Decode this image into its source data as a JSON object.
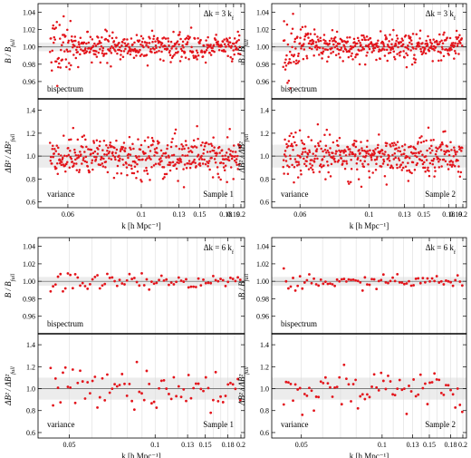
{
  "chart_data": [
    {
      "type": "scatter",
      "top": {
        "ylabel": "B / B_full",
        "ylim": [
          0.94,
          1.05
        ],
        "yticks": [
          "0.96",
          "0.98",
          "1.00",
          "1.02",
          "1.04"
        ],
        "annotation": "bispectrum",
        "label": "Δk = 3 k_f"
      },
      "bottom": {
        "ylabel": "ΔB² / ΔB²_full",
        "ylim": [
          0.55,
          1.5
        ],
        "yticks": [
          "0.6",
          "0.8",
          "1.0",
          "1.2",
          "1.4"
        ],
        "annotation": "variance",
        "label": "Sample 1"
      },
      "xlabel": "k [h Mpc⁻¹]",
      "xticks": [
        "0.06",
        "0.1",
        "0.13",
        "0.15",
        "0.18",
        "0.19",
        "0.2"
      ],
      "n_points": 420,
      "seed": 11,
      "ratio_scatter": 0.008,
      "variance_scatter": 0.09,
      "grid": "faint vertical lines"
    },
    {
      "type": "scatter",
      "top": {
        "ylabel": "B / B_full",
        "ylim": [
          0.94,
          1.05
        ],
        "yticks": [
          "0.96",
          "0.98",
          "1.00",
          "1.02",
          "1.04"
        ],
        "annotation": "bispectrum",
        "label": "Δk = 3 k_f"
      },
      "bottom": {
        "ylabel": "ΔB² / ΔB²_full",
        "ylim": [
          0.55,
          1.5
        ],
        "yticks": [
          "0.6",
          "0.8",
          "1.0",
          "1.2",
          "1.4"
        ],
        "annotation": "variance",
        "label": "Sample 2"
      },
      "xlabel": "k [h Mpc⁻¹]",
      "xticks": [
        "0.06",
        "0.1",
        "0.13",
        "0.15",
        "0.18",
        "0.19",
        "0.2"
      ],
      "n_points": 420,
      "seed": 23,
      "ratio_scatter": 0.008,
      "variance_scatter": 0.09,
      "grid": "faint vertical lines"
    },
    {
      "type": "scatter",
      "top": {
        "ylabel": "B / B_full",
        "ylim": [
          0.94,
          1.05
        ],
        "yticks": [
          "0.96",
          "0.98",
          "1.00",
          "1.02",
          "1.04"
        ],
        "annotation": "bispectrum",
        "label": "Δk = 6 k_f"
      },
      "bottom": {
        "ylabel": "ΔB² / ΔB²_full",
        "ylim": [
          0.55,
          1.5
        ],
        "yticks": [
          "0.6",
          "0.8",
          "1.0",
          "1.2",
          "1.4"
        ],
        "annotation": "variance",
        "label": "Sample 1"
      },
      "xlabel": "k [h Mpc⁻¹]",
      "xticks": [
        "0.05",
        "0.1",
        "0.13",
        "0.15",
        "0.18",
        "0.2"
      ],
      "n_points": 78,
      "seed": 37,
      "ratio_scatter": 0.004,
      "variance_scatter": 0.1,
      "grid": "faint vertical lines"
    },
    {
      "type": "scatter",
      "top": {
        "ylabel": "B / B_full",
        "ylim": [
          0.94,
          1.05
        ],
        "yticks": [
          "0.96",
          "0.98",
          "1.00",
          "1.02",
          "1.04"
        ],
        "annotation": "bispectrum",
        "label": "Δk = 6 k_f"
      },
      "bottom": {
        "ylabel": "ΔB² / ΔB²_full",
        "ylim": [
          0.55,
          1.5
        ],
        "yticks": [
          "0.6",
          "0.8",
          "1.0",
          "1.2",
          "1.4"
        ],
        "annotation": "variance",
        "label": "Sample 2"
      },
      "xlabel": "k [h Mpc⁻¹]",
      "xticks": [
        "0.05",
        "0.1",
        "0.13",
        "0.15",
        "0.18",
        "0.2"
      ],
      "n_points": 78,
      "seed": 53,
      "ratio_scatter": 0.004,
      "variance_scatter": 0.1,
      "grid": "faint vertical lines"
    }
  ],
  "colors": {
    "marker": "#e3141b",
    "frame": "#000000",
    "grid": "#dcdcdc",
    "band": "#ececec",
    "unity": "#555555"
  }
}
